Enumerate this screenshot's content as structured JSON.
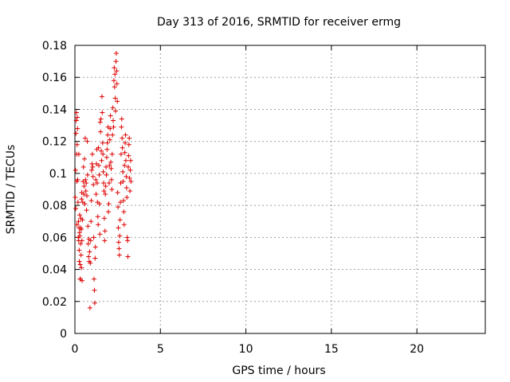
{
  "chart_data": {
    "type": "scatter",
    "title": "Day 313 of 2016, SRMTID for receiver ermg",
    "xlabel": "GPS time / hours",
    "ylabel": "SRMTID / TECUs",
    "xlim": [
      0,
      24
    ],
    "ylim": [
      0,
      0.18
    ],
    "xticks": [
      0,
      5,
      10,
      15,
      20
    ],
    "yticks": [
      0,
      0.02,
      0.04,
      0.06,
      0.08,
      0.1,
      0.12,
      0.14,
      0.16,
      0.18
    ],
    "grid": true,
    "legend": "none",
    "marker": "+",
    "color": "#dd0000",
    "points": [
      [
        0.02,
        0.085
      ],
      [
        0.04,
        0.102
      ],
      [
        0.05,
        0.078
      ],
      [
        0.06,
        0.125
      ],
      [
        0.08,
        0.133
      ],
      [
        0.09,
        0.138
      ],
      [
        0.1,
        0.112
      ],
      [
        0.11,
        0.095
      ],
      [
        0.12,
        0.068
      ],
      [
        0.13,
        0.118
      ],
      [
        0.14,
        0.135
      ],
      [
        0.15,
        0.128
      ],
      [
        0.16,
        0.096
      ],
      [
        0.18,
        0.082
      ],
      [
        0.2,
        0.06
      ],
      [
        0.21,
        0.07
      ],
      [
        0.22,
        0.058
      ],
      [
        0.23,
        0.112
      ],
      [
        0.24,
        0.066
      ],
      [
        0.25,
        0.052
      ],
      [
        0.26,
        0.045
      ],
      [
        0.27,
        0.063
      ],
      [
        0.28,
        0.074
      ],
      [
        0.29,
        0.061
      ],
      [
        0.3,
        0.034
      ],
      [
        0.31,
        0.043
      ],
      [
        0.32,
        0.034
      ],
      [
        0.33,
        0.056
      ],
      [
        0.34,
        0.066
      ],
      [
        0.35,
        0.072
      ],
      [
        0.36,
        0.049
      ],
      [
        0.37,
        0.065
      ],
      [
        0.38,
        0.041
      ],
      [
        0.39,
        0.084
      ],
      [
        0.4,
        0.088
      ],
      [
        0.41,
        0.058
      ],
      [
        0.42,
        0.033
      ],
      [
        0.44,
        0.071
      ],
      [
        0.46,
        0.082
      ],
      [
        0.48,
        0.095
      ],
      [
        0.5,
        0.104
      ],
      [
        0.52,
        0.087
      ],
      [
        0.54,
        0.092
      ],
      [
        0.56,
        0.109
      ],
      [
        0.58,
        0.081
      ],
      [
        0.6,
        0.122
      ],
      [
        0.62,
        0.096
      ],
      [
        0.64,
        0.089
      ],
      [
        0.66,
        0.094
      ],
      [
        0.68,
        0.077
      ],
      [
        0.7,
        0.086
      ],
      [
        0.72,
        0.12
      ],
      [
        0.74,
        0.099
      ],
      [
        0.76,
        0.067
      ],
      [
        0.78,
        0.056
      ],
      [
        0.8,
        0.048
      ],
      [
        0.82,
        0.059
      ],
      [
        0.84,
        0.045
      ],
      [
        0.86,
        0.051
      ],
      [
        0.88,
        0.016
      ],
      [
        0.9,
        0.044
      ],
      [
        0.92,
        0.058
      ],
      [
        0.94,
        0.07
      ],
      [
        0.96,
        0.083
      ],
      [
        0.98,
        0.102
      ],
      [
        1.0,
        0.106
      ],
      [
        1.02,
        0.112
      ],
      [
        1.04,
        0.104
      ],
      [
        1.06,
        0.098
      ],
      [
        1.08,
        0.093
      ],
      [
        1.1,
        0.06
      ],
      [
        1.12,
        0.034
      ],
      [
        1.14,
        0.027
      ],
      [
        1.16,
        0.019
      ],
      [
        1.18,
        0.047
      ],
      [
        1.2,
        0.054
      ],
      [
        1.22,
        0.096
      ],
      [
        1.24,
        0.087
      ],
      [
        1.26,
        0.106
      ],
      [
        1.28,
        0.115
      ],
      [
        1.3,
        0.094
      ],
      [
        1.32,
        0.082
      ],
      [
        1.34,
        0.073
      ],
      [
        1.36,
        0.068
      ],
      [
        1.38,
        0.116
      ],
      [
        1.4,
        0.105
      ],
      [
        1.42,
        0.099
      ],
      [
        1.44,
        0.081
      ],
      [
        1.46,
        0.062
      ],
      [
        1.48,
        0.132
      ],
      [
        1.5,
        0.126
      ],
      [
        1.52,
        0.134
      ],
      [
        1.54,
        0.114
      ],
      [
        1.56,
        0.108
      ],
      [
        1.58,
        0.148
      ],
      [
        1.6,
        0.138
      ],
      [
        1.62,
        0.119
      ],
      [
        1.64,
        0.112
      ],
      [
        1.66,
        0.101
      ],
      [
        1.68,
        0.094
      ],
      [
        1.7,
        0.089
      ],
      [
        1.72,
        0.072
      ],
      [
        1.74,
        0.058
      ],
      [
        1.76,
        0.064
      ],
      [
        1.78,
        0.087
      ],
      [
        1.8,
        0.092
      ],
      [
        1.82,
        0.104
      ],
      [
        1.84,
        0.099
      ],
      [
        1.86,
        0.11
      ],
      [
        1.88,
        0.115
      ],
      [
        1.9,
        0.119
      ],
      [
        1.92,
        0.124
      ],
      [
        1.94,
        0.129
      ],
      [
        1.96,
        0.076
      ],
      [
        1.98,
        0.081
      ],
      [
        2.0,
        0.094
      ],
      [
        2.02,
        0.105
      ],
      [
        2.04,
        0.121
      ],
      [
        2.06,
        0.128
      ],
      [
        2.08,
        0.136
      ],
      [
        2.1,
        0.107
      ],
      [
        2.12,
        0.103
      ],
      [
        2.14,
        0.096
      ],
      [
        2.16,
        0.09
      ],
      [
        2.18,
        0.112
      ],
      [
        2.2,
        0.124
      ],
      [
        2.22,
        0.141
      ],
      [
        2.24,
        0.133
      ],
      [
        2.26,
        0.129
      ],
      [
        2.28,
        0.158
      ],
      [
        2.3,
        0.166
      ],
      [
        2.32,
        0.154
      ],
      [
        2.34,
        0.162
      ],
      [
        2.36,
        0.147
      ],
      [
        2.38,
        0.139
      ],
      [
        2.4,
        0.17
      ],
      [
        2.42,
        0.175
      ],
      [
        2.44,
        0.164
      ],
      [
        2.46,
        0.156
      ],
      [
        2.48,
        0.145
      ],
      [
        2.5,
        0.088
      ],
      [
        2.52,
        0.079
      ],
      [
        2.54,
        0.066
      ],
      [
        2.56,
        0.057
      ],
      [
        2.58,
        0.053
      ],
      [
        2.6,
        0.049
      ],
      [
        2.62,
        0.061
      ],
      [
        2.64,
        0.071
      ],
      [
        2.66,
        0.082
      ],
      [
        2.68,
        0.094
      ],
      [
        2.7,
        0.112
      ],
      [
        2.72,
        0.129
      ],
      [
        2.74,
        0.134
      ],
      [
        2.76,
        0.122
      ],
      [
        2.78,
        0.116
      ],
      [
        2.8,
        0.101
      ],
      [
        2.82,
        0.095
      ],
      [
        2.84,
        0.083
      ],
      [
        2.86,
        0.076
      ],
      [
        2.88,
        0.068
      ],
      [
        2.9,
        0.105
      ],
      [
        2.92,
        0.113
      ],
      [
        2.94,
        0.119
      ],
      [
        2.96,
        0.124
      ],
      [
        2.98,
        0.108
      ],
      [
        3.0,
        0.098
      ],
      [
        3.02,
        0.091
      ],
      [
        3.04,
        0.085
      ],
      [
        3.06,
        0.06
      ],
      [
        3.08,
        0.058
      ],
      [
        3.1,
        0.048
      ],
      [
        3.12,
        0.104
      ],
      [
        3.14,
        0.111
      ],
      [
        3.16,
        0.118
      ],
      [
        3.18,
        0.122
      ],
      [
        3.2,
        0.097
      ],
      [
        3.22,
        0.089
      ],
      [
        3.24,
        0.102
      ],
      [
        3.26,
        0.108
      ],
      [
        3.28,
        0.095
      ]
    ]
  }
}
